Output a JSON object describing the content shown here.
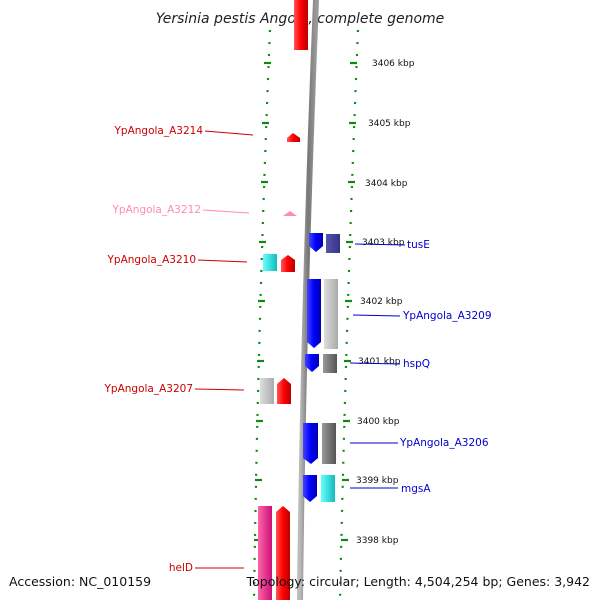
{
  "title": "Yersinia pestis Angola, complete genome",
  "accession": "Accession: NC_010159",
  "topology": "Topology: circular; Length: 4,504,254 bp; Genes: 3,942",
  "ticks": [
    "3406 kbp",
    "3405 kbp",
    "3404 kbp",
    "3403 kbp",
    "3402 kbp",
    "3401 kbp",
    "3400 kbp",
    "3399 kbp",
    "3398 kbp"
  ],
  "left_labels": [
    "YpAngola_A3214",
    "YpAngola_A3212",
    "YpAngola_A3210",
    "YpAngola_A3207",
    "helD"
  ],
  "right_labels": [
    "tusE",
    "YpAngola_A3209",
    "hspQ",
    "YpAngola_A3206",
    "mgsA"
  ],
  "colors": {
    "forward_gene": "#ff0000",
    "reverse_gene": "#0000ff",
    "pseudo_gene": "#ff88bb",
    "left_label": "#cc0000",
    "right_label": "#0000cc",
    "cds_cyan": "#22dddd",
    "cds_gray": "#aaaaaa",
    "pink_feature": "#ee2288",
    "backbone": "#888888",
    "dotted_ring": "#118811"
  }
}
